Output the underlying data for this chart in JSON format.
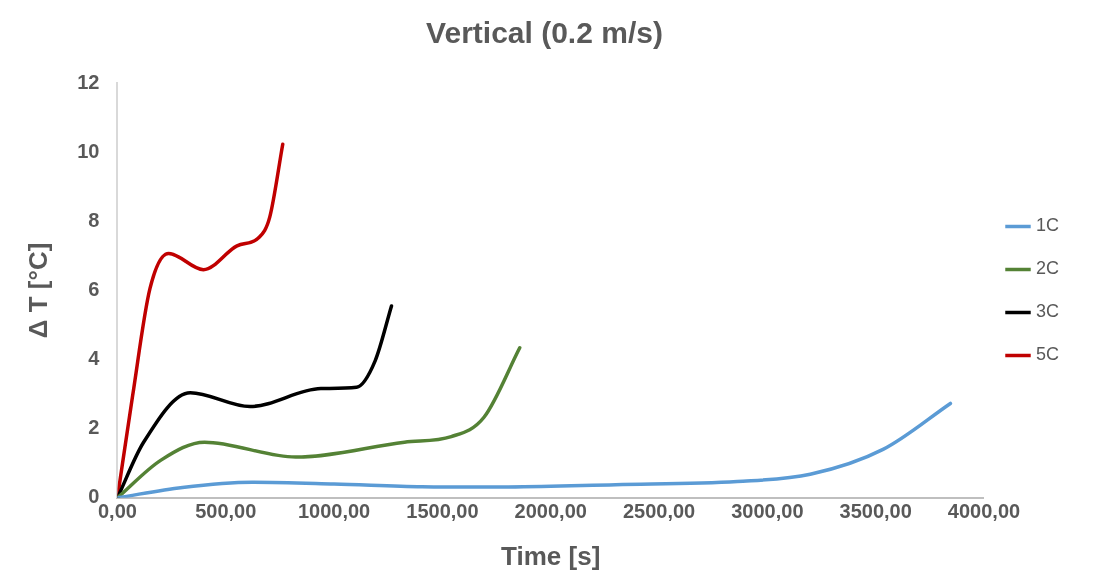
{
  "chart_data": {
    "type": "line",
    "title": "Vertical (0.2 m/s)",
    "xlabel": "Time [s]",
    "ylabel": "Δ T [°C]",
    "xlim": [
      0,
      4000
    ],
    "xticks": [
      {
        "value": 0,
        "label": "0,00"
      },
      {
        "value": 500,
        "label": "500,00"
      },
      {
        "value": 1000,
        "label": "1000,00"
      },
      {
        "value": 1500,
        "label": "1500,00"
      },
      {
        "value": 2000,
        "label": "2000,00"
      },
      {
        "value": 2500,
        "label": "2500,00"
      },
      {
        "value": 3000,
        "label": "3000,00"
      },
      {
        "value": 3500,
        "label": "3500,00"
      },
      {
        "value": 4000,
        "label": "4000,00"
      }
    ],
    "ylim": [
      0,
      12
    ],
    "yticks": [
      0,
      2,
      4,
      6,
      8,
      10,
      12
    ],
    "grid": false,
    "legend": "right",
    "marker": "none",
    "line_style": "solid",
    "series": [
      {
        "name": "1C",
        "color": "#5b9bd5",
        "x": [
          0,
          300,
          622,
          1000,
          1406,
          1700,
          2300,
          2861,
          3198,
          3534,
          3845
        ],
        "values": [
          0,
          0.3,
          0.45,
          0.4,
          0.32,
          0.31,
          0.38,
          0.47,
          0.68,
          1.4,
          2.73
        ]
      },
      {
        "name": "2C",
        "color": "#548235",
        "x": [
          0,
          201,
          402,
          823,
          1325,
          1541,
          1692,
          1857
        ],
        "values": [
          0,
          1.09,
          1.61,
          1.18,
          1.61,
          1.77,
          2.33,
          4.34
        ]
      },
      {
        "name": "3C",
        "color": "#000000",
        "x": [
          0,
          120,
          336,
          612,
          939,
          1104,
          1190,
          1265
        ],
        "values": [
          0,
          1.6,
          3.04,
          2.64,
          3.16,
          3.2,
          3.97,
          5.55
        ]
      },
      {
        "name": "5C",
        "color": "#c00000",
        "x": [
          0,
          70,
          150,
          236,
          397,
          552,
          653,
          703,
          763
        ],
        "values": [
          0,
          2.95,
          6.05,
          7.07,
          6.6,
          7.29,
          7.53,
          8.12,
          10.23
        ]
      }
    ]
  }
}
